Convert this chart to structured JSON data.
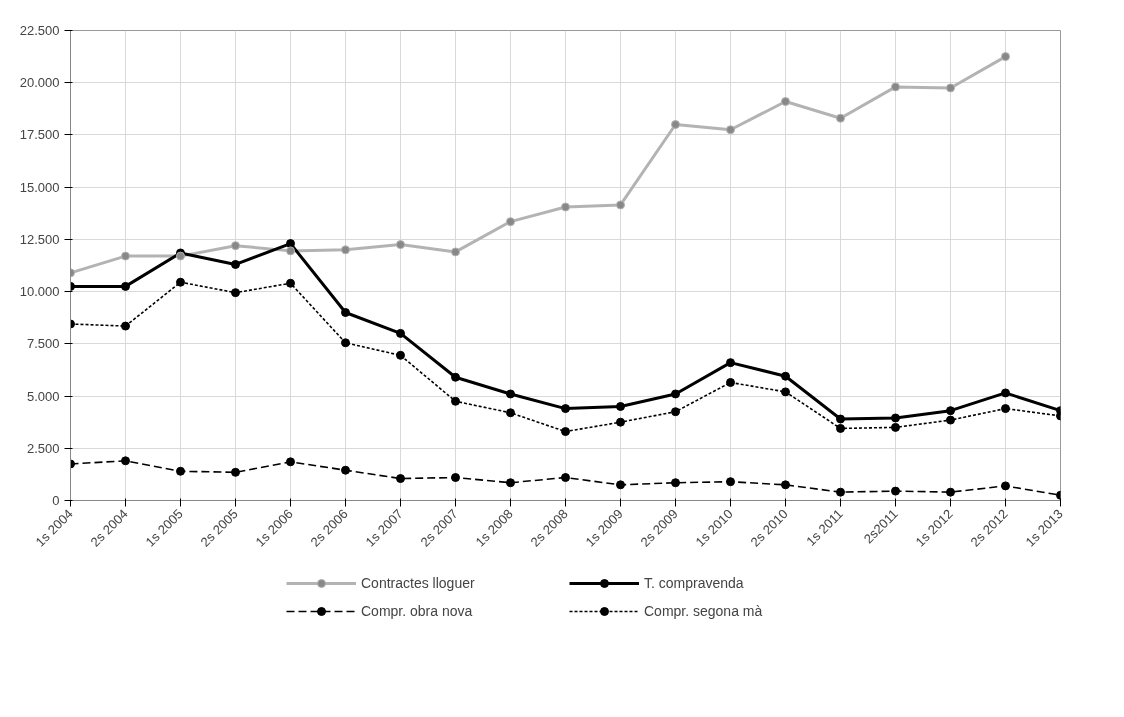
{
  "chart_data": {
    "type": "line",
    "categories": [
      "1s 2004",
      "2s 2004",
      "1s 2005",
      "2s 2005",
      "1s 2006",
      "2s 2006",
      "1s 2007",
      "2s 2007",
      "1s 2008",
      "2s 2008",
      "1s 2009",
      "2s 2009",
      "1s 2010",
      "2s 2010",
      "1s 2011",
      "2s2011",
      "1s 2012",
      "2s 2012",
      "1s 2013"
    ],
    "series": [
      {
        "name": "Contractes lloguer",
        "color": "#b3b3b3",
        "line_style": "solid",
        "values": [
          10900,
          11700,
          11700,
          12200,
          11950,
          12000,
          12250,
          11900,
          13350,
          14050,
          14150,
          18000,
          17750,
          19100,
          18300,
          19800,
          19750,
          21250,
          null
        ]
      },
      {
        "name": "T. compravenda",
        "color": "#000000",
        "line_style": "solid",
        "values": [
          10250,
          10250,
          11850,
          11300,
          12300,
          9000,
          8000,
          5900,
          5100,
          4400,
          4500,
          5100,
          6600,
          5950,
          3900,
          3950,
          4300,
          5150,
          4300
        ]
      },
      {
        "name": "Compr. obra nova",
        "color": "#000000",
        "line_style": "dashed",
        "values": [
          1750,
          1900,
          1400,
          1350,
          1850,
          1450,
          1050,
          1100,
          850,
          1100,
          750,
          850,
          900,
          750,
          400,
          450,
          400,
          700,
          250
        ]
      },
      {
        "name": "Compr. segona mà",
        "color": "#000000",
        "line_style": "dotted",
        "values": [
          8450,
          8350,
          10450,
          9950,
          10400,
          7550,
          6950,
          4750,
          4200,
          3300,
          3750,
          4250,
          5650,
          5200,
          3450,
          3500,
          3850,
          4400,
          4050
        ]
      }
    ],
    "ylim": [
      0,
      22500
    ],
    "yticks": [
      0,
      {
        "value": 2500,
        "label": "2.500"
      },
      {
        "value": 5000,
        "label": "5.000"
      },
      {
        "value": 7500,
        "label": "7.500"
      },
      {
        "value": 10000,
        "label": "10.000"
      },
      {
        "value": 12500,
        "label": "12.500"
      },
      {
        "value": 15000,
        "label": "15.000"
      },
      {
        "value": 17500,
        "label": "17.500"
      },
      {
        "value": 20000,
        "label": "20.000"
      },
      {
        "value": 22500,
        "label": "22.500"
      }
    ],
    "grid": true,
    "legend": "bottom",
    "marker": "circle"
  }
}
